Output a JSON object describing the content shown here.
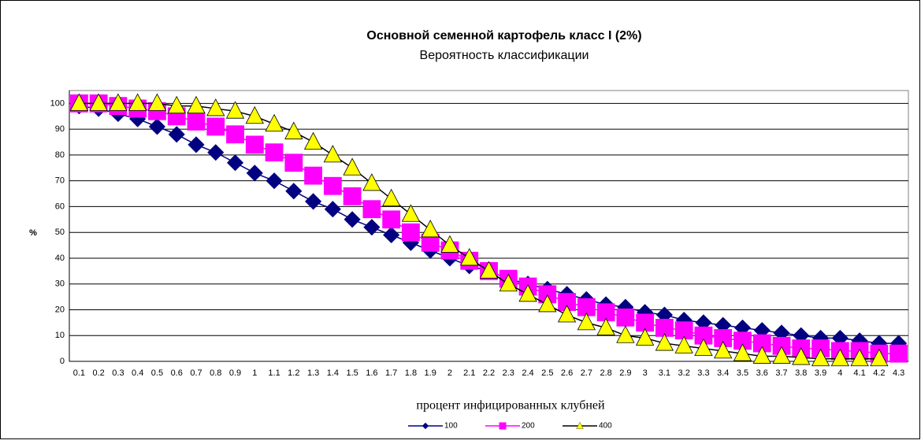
{
  "chart_data": {
    "type": "line",
    "title": "Основной семенной картофель класс I (2%)",
    "subtitle": "Вероятность классификации",
    "y_label": "%",
    "x_label": "процент инфицированных клубней",
    "categories": [
      "0.1",
      "0.2",
      "0.3",
      "0.4",
      "0.5",
      "0.6",
      "0.7",
      "0.8",
      "0.9",
      "1",
      "1.1",
      "1.2",
      "1.3",
      "1.4",
      "1.5",
      "1.6",
      "1.7",
      "1.8",
      "1.9",
      "2",
      "2.1",
      "2.2",
      "2.3",
      "2.4",
      "2.5",
      "2.6",
      "2.7",
      "2.8",
      "2.9",
      "3",
      "3.1",
      "3.2",
      "3.3",
      "3.4",
      "3.5",
      "3.6",
      "3.7",
      "3.8",
      "3.9",
      "4",
      "4.1",
      "4.2",
      "4.3"
    ],
    "series": [
      {
        "name": "100",
        "color": "#000080",
        "line_color": "#000080",
        "marker": "diamond",
        "values": [
          99,
          98,
          96,
          94,
          91,
          88,
          84,
          81,
          77,
          73,
          70,
          66,
          62,
          59,
          55,
          52,
          49,
          46,
          43,
          40,
          37,
          35,
          32,
          30,
          28,
          26,
          24,
          22,
          21,
          19,
          18,
          16,
          15,
          14,
          13,
          12,
          11,
          10,
          9,
          9,
          8,
          7,
          7
        ]
      },
      {
        "name": "200",
        "color": "#ff00ff",
        "line_color": "#ff00ff",
        "marker": "square",
        "values": [
          100,
          100,
          99,
          98,
          97,
          95,
          93,
          91,
          88,
          84,
          81,
          77,
          72,
          68,
          64,
          59,
          55,
          50,
          46,
          43,
          39,
          35,
          32,
          29,
          26,
          23,
          21,
          19,
          17,
          15,
          13,
          12,
          10,
          9,
          8,
          7,
          6,
          5,
          5,
          4,
          4,
          3,
          3
        ]
      },
      {
        "name": "400",
        "color": "#ffff00",
        "line_color": "#000000",
        "marker": "triangle",
        "values": [
          100,
          100,
          100,
          100,
          100,
          99,
          99,
          98,
          97,
          95,
          92,
          89,
          85,
          80,
          75,
          69,
          63,
          57,
          51,
          45,
          40,
          35,
          30,
          26,
          22,
          18,
          15,
          13,
          10,
          9,
          7,
          6,
          5,
          4,
          3,
          2,
          2,
          1.5,
          1,
          1,
          1,
          1,
          null
        ]
      }
    ],
    "ylim": [
      0,
      105
    ],
    "yticks": [
      0,
      10,
      20,
      30,
      40,
      50,
      60,
      70,
      80,
      90,
      100
    ],
    "grid": true,
    "legend": "bottom"
  }
}
